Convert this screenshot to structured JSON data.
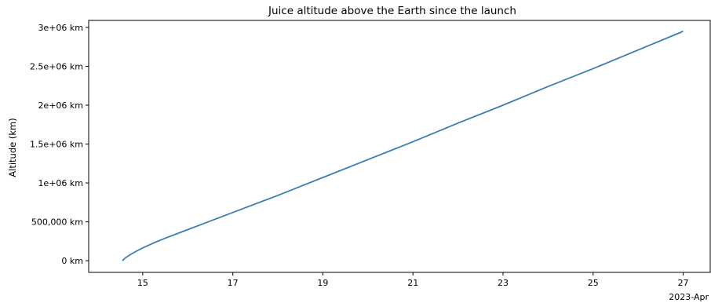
{
  "chart_data": {
    "type": "line",
    "title": "Juice altitude above the Earth since the launch",
    "xlabel": "",
    "ylabel": "Altitude (km)",
    "x_offset_label": "2023-Apr",
    "x_ticks": [
      {
        "value": 15,
        "label": "15"
      },
      {
        "value": 17,
        "label": "17"
      },
      {
        "value": 19,
        "label": "19"
      },
      {
        "value": 21,
        "label": "21"
      },
      {
        "value": 23,
        "label": "23"
      },
      {
        "value": 25,
        "label": "25"
      },
      {
        "value": 27,
        "label": "27"
      }
    ],
    "y_ticks": [
      {
        "value": 0,
        "label": "0 km"
      },
      {
        "value": 500000,
        "label": "500,000 km"
      },
      {
        "value": 1000000,
        "label": "1e+06 km"
      },
      {
        "value": 1500000,
        "label": "1.5e+06 km"
      },
      {
        "value": 2000000,
        "label": "2e+06 km"
      },
      {
        "value": 2500000,
        "label": "2.5e+06 km"
      },
      {
        "value": 3000000,
        "label": "3e+06 km"
      }
    ],
    "xlim": [
      13.8,
      27.6
    ],
    "ylim": [
      -150000,
      3090000
    ],
    "grid": false,
    "series": [
      {
        "color": "#3a7fb0",
        "x": [
          14.55,
          14.6,
          14.7,
          14.85,
          15.0,
          15.25,
          15.5,
          16.0,
          17.0,
          18.0,
          19.0,
          20.0,
          21.0,
          22.0,
          23.0,
          24.0,
          25.0,
          26.0,
          27.0
        ],
        "y": [
          0,
          30000,
          70000,
          120000,
          165000,
          230000,
          290000,
          400000,
          620000,
          840000,
          1070000,
          1300000,
          1530000,
          1770000,
          2000000,
          2240000,
          2470000,
          2710000,
          2950000
        ]
      }
    ]
  }
}
